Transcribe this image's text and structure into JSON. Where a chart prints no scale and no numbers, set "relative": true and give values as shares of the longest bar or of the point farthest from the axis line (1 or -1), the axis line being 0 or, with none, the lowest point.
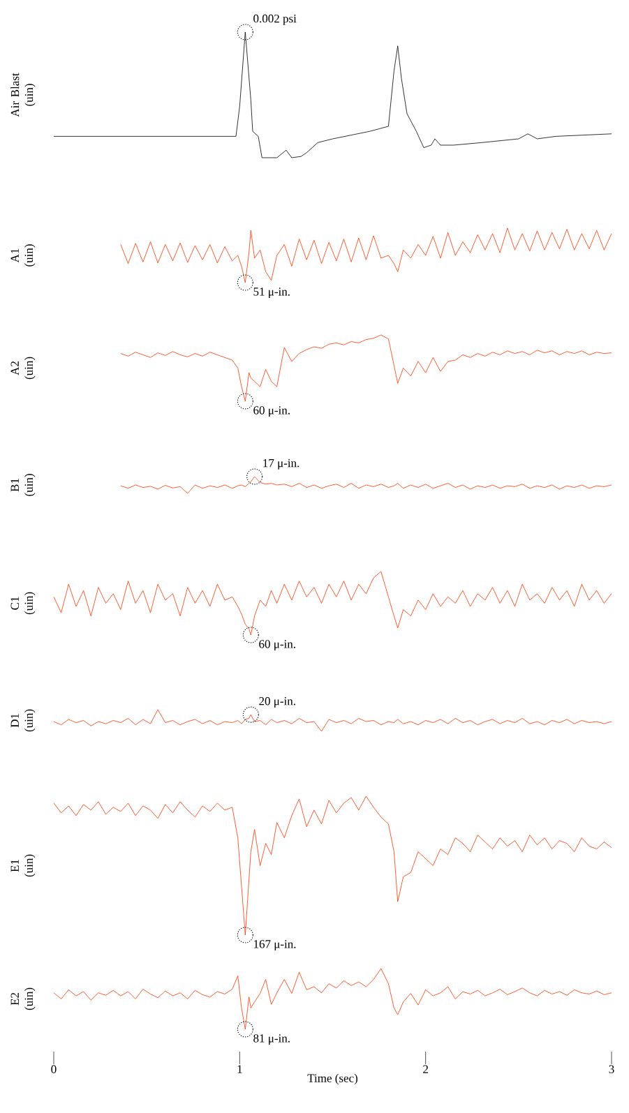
{
  "chart_data": [
    {
      "type": "line",
      "ylabel": "Air Blast (uin)",
      "relative": true,
      "xlim": [
        0,
        3
      ],
      "tick_labels": false,
      "color": "#000000",
      "x": [
        0,
        0.5,
        0.98,
        1.0,
        1.03,
        1.06,
        1.07,
        1.1,
        1.12,
        1.2,
        1.25,
        1.28,
        1.33,
        1.36,
        1.42,
        1.5,
        1.6,
        1.7,
        1.75,
        1.8,
        1.83,
        1.85,
        1.87,
        1.9,
        1.95,
        1.99,
        2.03,
        2.05,
        2.08,
        2.15,
        2.3,
        2.5,
        2.55,
        2.6,
        2.7,
        2.85,
        3.0
      ],
      "values": [
        0.17,
        0.17,
        0.17,
        0.41,
        1,
        0.46,
        0.21,
        0.17,
        0,
        0,
        0.06,
        0,
        0.01,
        0.04,
        0.12,
        0.15,
        0.18,
        0.21,
        0.23,
        0.25,
        0.69,
        0.89,
        0.63,
        0.35,
        0.21,
        0.08,
        0.1,
        0.15,
        0.1,
        0.1,
        0.12,
        0.15,
        0.19,
        0.15,
        0.17,
        0.18,
        0.19
      ],
      "annotations": [
        {
          "text": "0.002 psi",
          "x": 1.03,
          "y": 1
        }
      ]
    },
    {
      "type": "line",
      "ylabel": "A1 (uin)",
      "relative": true,
      "xlim": [
        0,
        3
      ],
      "tick_labels": false,
      "color": "#ff3300",
      "x": [
        0.36,
        0.4,
        0.44,
        0.48,
        0.52,
        0.56,
        0.6,
        0.64,
        0.68,
        0.72,
        0.76,
        0.8,
        0.84,
        0.88,
        0.92,
        0.96,
        0.99,
        1.01,
        1.03,
        1.05,
        1.06,
        1.08,
        1.11,
        1.14,
        1.17,
        1.2,
        1.24,
        1.28,
        1.32,
        1.36,
        1.4,
        1.44,
        1.48,
        1.52,
        1.56,
        1.6,
        1.64,
        1.68,
        1.72,
        1.76,
        1.8,
        1.83,
        1.85,
        1.88,
        1.92,
        1.96,
        2,
        2.04,
        2.08,
        2.12,
        2.16,
        2.2,
        2.24,
        2.28,
        2.32,
        2.36,
        2.4,
        2.44,
        2.48,
        2.52,
        2.56,
        2.6,
        2.64,
        2.68,
        2.72,
        2.76,
        2.8,
        2.84,
        2.88,
        2.92,
        2.96,
        3
      ],
      "values": [
        0.7,
        0.35,
        0.72,
        0.38,
        0.75,
        0.36,
        0.7,
        0.4,
        0.73,
        0.37,
        0.68,
        0.42,
        0.7,
        0.36,
        0.66,
        0.4,
        0.5,
        0.3,
        0,
        0.55,
        0.96,
        0.45,
        0.6,
        0.2,
        0.04,
        0.5,
        0.7,
        0.3,
        0.8,
        0.42,
        0.78,
        0.35,
        0.74,
        0.4,
        0.8,
        0.38,
        0.82,
        0.42,
        0.86,
        0.45,
        0.5,
        0.35,
        0.2,
        0.6,
        0.45,
        0.7,
        0.5,
        0.85,
        0.45,
        0.92,
        0.5,
        0.75,
        0.55,
        0.88,
        0.6,
        0.9,
        0.55,
        1,
        0.6,
        0.9,
        0.58,
        0.95,
        0.6,
        0.92,
        0.62,
        0.98,
        0.6,
        0.9,
        0.62,
        0.96,
        0.6,
        0.9
      ],
      "annotations": [
        {
          "text": "51 μ-in.",
          "x": 1.03,
          "y": 0
        }
      ]
    },
    {
      "type": "line",
      "ylabel": "A2 (uin)",
      "relative": true,
      "xlim": [
        0,
        3
      ],
      "tick_labels": false,
      "color": "#ff3300",
      "x": [
        0.36,
        0.4,
        0.44,
        0.48,
        0.52,
        0.56,
        0.6,
        0.64,
        0.68,
        0.72,
        0.76,
        0.8,
        0.84,
        0.88,
        0.92,
        0.96,
        0.99,
        1.01,
        1.03,
        1.05,
        1.06,
        1.08,
        1.11,
        1.14,
        1.17,
        1.2,
        1.24,
        1.28,
        1.32,
        1.36,
        1.4,
        1.44,
        1.48,
        1.52,
        1.56,
        1.6,
        1.64,
        1.68,
        1.72,
        1.76,
        1.8,
        1.83,
        1.85,
        1.88,
        1.92,
        1.96,
        2,
        2.04,
        2.08,
        2.12,
        2.16,
        2.2,
        2.24,
        2.28,
        2.32,
        2.36,
        2.4,
        2.44,
        2.48,
        2.52,
        2.56,
        2.6,
        2.64,
        2.68,
        2.72,
        2.76,
        2.8,
        2.84,
        2.88,
        2.92,
        2.96,
        3
      ],
      "values": [
        0.72,
        0.68,
        0.74,
        0.7,
        0.66,
        0.73,
        0.69,
        0.75,
        0.7,
        0.67,
        0.72,
        0.68,
        0.74,
        0.7,
        0.66,
        0.62,
        0.5,
        0.22,
        0,
        0.43,
        0.35,
        0.3,
        0.22,
        0.48,
        0.3,
        0.22,
        0.81,
        0.6,
        0.72,
        0.78,
        0.82,
        0.8,
        0.86,
        0.88,
        0.85,
        0.9,
        0.88,
        0.93,
        0.95,
        1,
        0.94,
        0.54,
        0.27,
        0.5,
        0.38,
        0.6,
        0.43,
        0.66,
        0.45,
        0.6,
        0.62,
        0.7,
        0.66,
        0.72,
        0.68,
        0.74,
        0.7,
        0.76,
        0.72,
        0.75,
        0.7,
        0.77,
        0.73,
        0.76,
        0.7,
        0.75,
        0.72,
        0.76,
        0.7,
        0.74,
        0.72,
        0.73
      ],
      "annotations": [
        {
          "text": "60 μ-in.",
          "x": 1.03,
          "y": 0
        }
      ]
    },
    {
      "type": "line",
      "ylabel": "B1 (uin)",
      "relative": true,
      "xlim": [
        0,
        3
      ],
      "tick_labels": false,
      "color": "#ff3300",
      "x": [
        0.36,
        0.4,
        0.44,
        0.48,
        0.52,
        0.56,
        0.6,
        0.64,
        0.68,
        0.72,
        0.76,
        0.8,
        0.84,
        0.88,
        0.92,
        0.96,
        0.99,
        1.01,
        1.03,
        1.05,
        1.06,
        1.08,
        1.11,
        1.14,
        1.17,
        1.2,
        1.24,
        1.28,
        1.32,
        1.36,
        1.4,
        1.44,
        1.48,
        1.52,
        1.56,
        1.6,
        1.64,
        1.68,
        1.72,
        1.76,
        1.8,
        1.83,
        1.85,
        1.88,
        1.92,
        1.96,
        2,
        2.04,
        2.08,
        2.12,
        2.16,
        2.2,
        2.24,
        2.28,
        2.32,
        2.36,
        2.4,
        2.44,
        2.48,
        2.52,
        2.56,
        2.6,
        2.64,
        2.68,
        2.72,
        2.76,
        2.8,
        2.84,
        2.88,
        2.92,
        2.96,
        3
      ],
      "values": [
        0.45,
        0.3,
        0.5,
        0.35,
        0.42,
        0.25,
        0.48,
        0.32,
        0.4,
        0,
        0.5,
        0.3,
        0.45,
        0.35,
        0.5,
        0.3,
        0.45,
        0.5,
        0.4,
        0.6,
        0.7,
        1,
        0.65,
        0.55,
        0.6,
        0.5,
        0.55,
        0.4,
        0.6,
        0.35,
        0.5,
        0.3,
        0.45,
        0.55,
        0.35,
        0.6,
        0.3,
        0.5,
        0.4,
        0.55,
        0.35,
        0.45,
        0.6,
        0.3,
        0.5,
        0.35,
        0.55,
        0.3,
        0.45,
        0.6,
        0.35,
        0.5,
        0.25,
        0.45,
        0.35,
        0.5,
        0.3,
        0.45,
        0.4,
        0.55,
        0.3,
        0.45,
        0.35,
        0.5,
        0.25,
        0.45,
        0.35,
        0.5,
        0.3,
        0.45,
        0.4,
        0.5
      ],
      "annotations": [
        {
          "text": "17 μ-in.",
          "x": 1.08,
          "y": 1
        }
      ]
    },
    {
      "type": "line",
      "ylabel": "C1 (uin)",
      "relative": true,
      "xlim": [
        0,
        3
      ],
      "tick_labels": false,
      "color": "#ff3300",
      "x": [
        0,
        0.04,
        0.08,
        0.12,
        0.16,
        0.2,
        0.24,
        0.28,
        0.32,
        0.36,
        0.4,
        0.44,
        0.48,
        0.52,
        0.56,
        0.6,
        0.64,
        0.68,
        0.72,
        0.76,
        0.8,
        0.84,
        0.88,
        0.92,
        0.96,
        0.99,
        1.01,
        1.03,
        1.05,
        1.06,
        1.08,
        1.11,
        1.14,
        1.17,
        1.2,
        1.24,
        1.28,
        1.32,
        1.36,
        1.4,
        1.44,
        1.48,
        1.52,
        1.56,
        1.6,
        1.64,
        1.68,
        1.72,
        1.76,
        1.8,
        1.83,
        1.85,
        1.88,
        1.92,
        1.96,
        2,
        2.04,
        2.08,
        2.12,
        2.16,
        2.2,
        2.24,
        2.28,
        2.32,
        2.36,
        2.4,
        2.44,
        2.48,
        2.52,
        2.56,
        2.6,
        2.64,
        2.68,
        2.72,
        2.76,
        2.8,
        2.84,
        2.88,
        2.92,
        2.96,
        3
      ],
      "values": [
        0.6,
        0.35,
        0.8,
        0.45,
        0.7,
        0.3,
        0.75,
        0.5,
        0.65,
        0.4,
        0.85,
        0.5,
        0.7,
        0.35,
        0.8,
        0.55,
        0.65,
        0.3,
        0.75,
        0.5,
        0.7,
        0.45,
        0.8,
        0.55,
        0.6,
        0.45,
        0.33,
        0.17,
        0.1,
        0,
        0.3,
        0.55,
        0.45,
        0.7,
        0.5,
        0.8,
        0.55,
        0.85,
        0.6,
        0.75,
        0.5,
        0.8,
        0.6,
        0.85,
        0.55,
        0.8,
        0.65,
        0.9,
        1,
        0.6,
        0.3,
        0.11,
        0.4,
        0.3,
        0.55,
        0.4,
        0.65,
        0.45,
        0.6,
        0.5,
        0.7,
        0.45,
        0.65,
        0.55,
        0.75,
        0.5,
        0.7,
        0.45,
        0.8,
        0.55,
        0.65,
        0.5,
        0.75,
        0.55,
        0.7,
        0.45,
        0.8,
        0.55,
        0.7,
        0.5,
        0.65
      ],
      "annotations": [
        {
          "text": "60 μ-in.",
          "x": 1.06,
          "y": 0
        }
      ]
    },
    {
      "type": "line",
      "ylabel": "D1 (uin)",
      "relative": true,
      "xlim": [
        0,
        3
      ],
      "tick_labels": false,
      "color": "#ff3300",
      "x": [
        0,
        0.04,
        0.08,
        0.12,
        0.16,
        0.2,
        0.24,
        0.28,
        0.32,
        0.36,
        0.4,
        0.44,
        0.48,
        0.52,
        0.56,
        0.6,
        0.64,
        0.68,
        0.72,
        0.76,
        0.8,
        0.84,
        0.88,
        0.92,
        0.96,
        0.99,
        1.01,
        1.03,
        1.05,
        1.06,
        1.08,
        1.11,
        1.14,
        1.17,
        1.2,
        1.24,
        1.28,
        1.32,
        1.36,
        1.4,
        1.44,
        1.48,
        1.52,
        1.56,
        1.6,
        1.64,
        1.68,
        1.72,
        1.76,
        1.8,
        1.83,
        1.85,
        1.88,
        1.92,
        1.96,
        2,
        2.04,
        2.08,
        2.12,
        2.16,
        2.2,
        2.24,
        2.28,
        2.32,
        2.36,
        2.4,
        2.44,
        2.48,
        2.52,
        2.56,
        2.6,
        2.64,
        2.68,
        2.72,
        2.76,
        2.8,
        2.84,
        2.88,
        2.92,
        2.96,
        3
      ],
      "values": [
        0.45,
        0.3,
        0.55,
        0.4,
        0.5,
        0.25,
        0.45,
        0.35,
        0.5,
        0.4,
        0.6,
        0.3,
        0.55,
        0.35,
        1,
        0.4,
        0.5,
        0.3,
        0.45,
        0.55,
        0.35,
        0.5,
        0.3,
        0.45,
        0.4,
        0.5,
        0.35,
        0.55,
        0.6,
        0.77,
        0.45,
        0.5,
        0.3,
        0.55,
        0.4,
        0.5,
        0.35,
        0.6,
        0.4,
        0.45,
        0,
        0.55,
        0.4,
        0.5,
        0.35,
        0.6,
        0.45,
        0.5,
        0.3,
        0.45,
        0.4,
        0.55,
        0.35,
        0.45,
        0.3,
        0.5,
        0.4,
        0.55,
        0.35,
        0.6,
        0.4,
        0.5,
        0.3,
        0.45,
        0.55,
        0.35,
        0.5,
        0.4,
        0.6,
        0.35,
        0.45,
        0.3,
        0.5,
        0.4,
        0.55,
        0.35,
        0.5,
        0.4,
        0.45,
        0.35,
        0.45
      ],
      "annotations": [
        {
          "text": "20 μ-in.",
          "x": 1.06,
          "y": 0.77
        }
      ]
    },
    {
      "type": "line",
      "ylabel": "E1 (uin)",
      "relative": true,
      "xlim": [
        0,
        3
      ],
      "tick_labels": false,
      "color": "#ff3300",
      "x": [
        0,
        0.04,
        0.08,
        0.12,
        0.16,
        0.2,
        0.24,
        0.28,
        0.32,
        0.36,
        0.4,
        0.44,
        0.48,
        0.52,
        0.56,
        0.6,
        0.64,
        0.68,
        0.72,
        0.76,
        0.8,
        0.84,
        0.88,
        0.92,
        0.96,
        0.99,
        1.01,
        1.03,
        1.05,
        1.06,
        1.08,
        1.11,
        1.14,
        1.17,
        1.2,
        1.24,
        1.28,
        1.32,
        1.36,
        1.4,
        1.44,
        1.48,
        1.52,
        1.56,
        1.6,
        1.64,
        1.68,
        1.72,
        1.76,
        1.8,
        1.83,
        1.85,
        1.88,
        1.92,
        1.96,
        2,
        2.04,
        2.08,
        2.12,
        2.16,
        2.2,
        2.24,
        2.28,
        2.32,
        2.36,
        2.4,
        2.44,
        2.48,
        2.52,
        2.56,
        2.6,
        2.64,
        2.68,
        2.72,
        2.76,
        2.8,
        2.84,
        2.88,
        2.92,
        2.96,
        3
      ],
      "values": [
        0.95,
        0.88,
        0.93,
        0.86,
        0.94,
        0.9,
        0.96,
        0.87,
        0.92,
        0.89,
        0.95,
        0.86,
        0.93,
        0.9,
        0.84,
        0.94,
        0.88,
        0.96,
        0.9,
        0.85,
        0.93,
        0.89,
        0.95,
        0.9,
        0.92,
        0.7,
        0.35,
        0,
        0.4,
        0.6,
        0.76,
        0.5,
        0.66,
        0.58,
        0.81,
        0.7,
        0.86,
        0.98,
        0.78,
        0.9,
        0.8,
        0.97,
        0.88,
        0.95,
        0.99,
        0.9,
        1,
        0.92,
        0.85,
        0.8,
        0.6,
        0.24,
        0.42,
        0.45,
        0.6,
        0.55,
        0.5,
        0.62,
        0.58,
        0.7,
        0.66,
        0.6,
        0.72,
        0.67,
        0.62,
        0.7,
        0.64,
        0.68,
        0.6,
        0.72,
        0.65,
        0.7,
        0.62,
        0.68,
        0.66,
        0.6,
        0.7,
        0.64,
        0.62,
        0.67,
        0.63
      ],
      "annotations": [
        {
          "text": "167 μ-in.",
          "x": 1.03,
          "y": 0
        }
      ]
    },
    {
      "type": "line",
      "ylabel": "E2 (uin)",
      "xlabel": "Time (sec)",
      "relative": true,
      "xlim": [
        0,
        3
      ],
      "xticks": [
        0,
        1,
        2,
        3
      ],
      "tick_labels": "x",
      "color": "#ff3300",
      "x": [
        0,
        0.04,
        0.08,
        0.12,
        0.16,
        0.2,
        0.24,
        0.28,
        0.32,
        0.36,
        0.4,
        0.44,
        0.48,
        0.52,
        0.56,
        0.6,
        0.64,
        0.68,
        0.72,
        0.76,
        0.8,
        0.84,
        0.88,
        0.92,
        0.96,
        0.99,
        1.01,
        1.03,
        1.05,
        1.06,
        1.08,
        1.11,
        1.14,
        1.17,
        1.2,
        1.24,
        1.28,
        1.32,
        1.36,
        1.4,
        1.44,
        1.48,
        1.52,
        1.56,
        1.6,
        1.64,
        1.68,
        1.72,
        1.76,
        1.8,
        1.83,
        1.85,
        1.88,
        1.92,
        1.96,
        2,
        2.04,
        2.08,
        2.12,
        2.16,
        2.2,
        2.24,
        2.28,
        2.32,
        2.36,
        2.4,
        2.44,
        2.48,
        2.52,
        2.56,
        2.6,
        2.64,
        2.68,
        2.72,
        2.76,
        2.8,
        2.84,
        2.88,
        2.92,
        2.96,
        3
      ],
      "values": [
        0.6,
        0.5,
        0.65,
        0.55,
        0.62,
        0.48,
        0.6,
        0.56,
        0.64,
        0.55,
        0.62,
        0.5,
        0.66,
        0.58,
        0.52,
        0.63,
        0.55,
        0.6,
        0.5,
        0.64,
        0.57,
        0.53,
        0.62,
        0.58,
        0.66,
        0.88,
        0.35,
        0,
        0.53,
        0.35,
        0.45,
        0.59,
        0.82,
        0.41,
        0.6,
        0.82,
        0.59,
        0.94,
        0.65,
        0.7,
        0.6,
        0.75,
        0.68,
        0.8,
        0.72,
        0.78,
        0.7,
        0.82,
        1,
        0.75,
        0.35,
        0.24,
        0.45,
        0.59,
        0.4,
        0.65,
        0.55,
        0.6,
        0.7,
        0.5,
        0.62,
        0.58,
        0.64,
        0.55,
        0.6,
        0.66,
        0.57,
        0.62,
        0.68,
        0.6,
        0.55,
        0.64,
        0.58,
        0.62,
        0.56,
        0.65,
        0.6,
        0.58,
        0.63,
        0.57,
        0.6
      ],
      "annotations": [
        {
          "text": "81 μ-in.",
          "x": 1.03,
          "y": 0
        }
      ]
    }
  ]
}
